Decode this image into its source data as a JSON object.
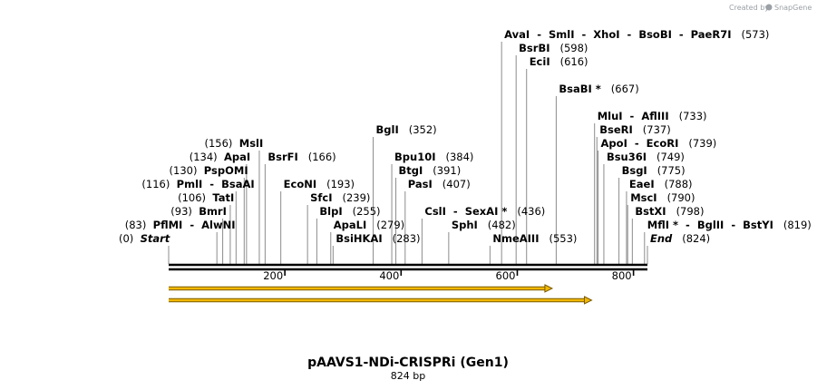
{
  "watermark": {
    "prefix": "Created by",
    "brand": "SnapGene"
  },
  "map": {
    "name": "pAAVS1-NDi-CRISPRi (Gen1)",
    "length_label": "824 bp",
    "length_bp": 824,
    "start_label": "Start",
    "end_label": "End",
    "ticks": [
      200,
      400,
      600,
      800
    ],
    "features": [
      {
        "name": "feature-arrow-1",
        "start": 1,
        "end": 660,
        "color": "#f2b800"
      },
      {
        "name": "feature-arrow-2",
        "start": 1,
        "end": 728,
        "color": "#f2b800"
      }
    ],
    "sites": [
      {
        "id": "start",
        "names": [
          "Start"
        ],
        "pos": 0,
        "pos_label": "(0)",
        "style": "start",
        "row": 0
      },
      {
        "id": "pflmi",
        "names": [
          "PflMI",
          "AlwNI"
        ],
        "pos": 83,
        "pos_label": "(83)",
        "row": 1
      },
      {
        "id": "bmri",
        "names": [
          "BmrI"
        ],
        "pos": 93,
        "pos_label": "(93)",
        "row": 2
      },
      {
        "id": "tati",
        "names": [
          "TatI"
        ],
        "pos": 106,
        "pos_label": "(106)",
        "row": 3
      },
      {
        "id": "pmli",
        "names": [
          "PmlI",
          "BsaAI"
        ],
        "pos": 116,
        "pos_label": "(116)",
        "row": 4
      },
      {
        "id": "pspomi",
        "names": [
          "PspOMI"
        ],
        "pos": 130,
        "pos_label": "(130)",
        "row": 5
      },
      {
        "id": "apai",
        "names": [
          "ApaI"
        ],
        "pos": 134,
        "pos_label": "(134)",
        "row": 6
      },
      {
        "id": "msli",
        "names": [
          "MslI"
        ],
        "pos": 156,
        "pos_label": "(156)",
        "row": 7
      },
      {
        "id": "bsrfi",
        "names": [
          "BsrFI"
        ],
        "pos": 166,
        "pos_label": "(166)",
        "row": 6
      },
      {
        "id": "econi",
        "names": [
          "EcoNI"
        ],
        "pos": 193,
        "pos_label": "(193)",
        "row": 4
      },
      {
        "id": "sfci",
        "names": [
          "SfcI"
        ],
        "pos": 239,
        "pos_label": "(239)",
        "row": 3
      },
      {
        "id": "blpi",
        "names": [
          "BlpI"
        ],
        "pos": 255,
        "pos_label": "(255)",
        "row": 2
      },
      {
        "id": "apali",
        "names": [
          "ApaLI"
        ],
        "pos": 279,
        "pos_label": "(279)",
        "row": 1
      },
      {
        "id": "bsihkai",
        "names": [
          "BsiHKAI"
        ],
        "pos": 283,
        "pos_label": "(283)",
        "row": 0
      },
      {
        "id": "bgli",
        "names": [
          "BglI"
        ],
        "pos": 352,
        "pos_label": "(352)",
        "row": 8
      },
      {
        "id": "bpu10i",
        "names": [
          "Bpu10I"
        ],
        "pos": 384,
        "pos_label": "(384)",
        "row": 6
      },
      {
        "id": "btgi",
        "names": [
          "BtgI"
        ],
        "pos": 391,
        "pos_label": "(391)",
        "row": 5
      },
      {
        "id": "pasi",
        "names": [
          "PasI"
        ],
        "pos": 407,
        "pos_label": "(407)",
        "row": 4
      },
      {
        "id": "csli",
        "names": [
          "CslI",
          "SexAI *"
        ],
        "pos": 436,
        "pos_label": "(436)",
        "row": 2
      },
      {
        "id": "sphi",
        "names": [
          "SphI"
        ],
        "pos": 482,
        "pos_label": "(482)",
        "row": 1
      },
      {
        "id": "nmeaiii",
        "names": [
          "NmeAIII"
        ],
        "pos": 553,
        "pos_label": "(553)",
        "row": 0
      },
      {
        "id": "avai",
        "names": [
          "AvaI",
          "SmlI",
          "XhoI",
          "BsoBI",
          "PaeR7I"
        ],
        "pos": 573,
        "pos_label": "(573)",
        "row": 15
      },
      {
        "id": "bsrbi",
        "names": [
          "BsrBI"
        ],
        "pos": 598,
        "pos_label": "(598)",
        "row": 14
      },
      {
        "id": "ecli",
        "names": [
          "EciI"
        ],
        "pos": 616,
        "pos_label": "(616)",
        "row": 13
      },
      {
        "id": "bsabi",
        "names": [
          "BsaBI *"
        ],
        "pos": 667,
        "pos_label": "(667)",
        "row": 11
      },
      {
        "id": "mlui",
        "names": [
          "MluI",
          "AflIII"
        ],
        "pos": 733,
        "pos_label": "(733)",
        "row": 9
      },
      {
        "id": "bseri",
        "names": [
          "BseRI"
        ],
        "pos": 737,
        "pos_label": "(737)",
        "row": 8
      },
      {
        "id": "apoi",
        "names": [
          "ApoI",
          "EcoRI"
        ],
        "pos": 739,
        "pos_label": "(739)",
        "row": 7
      },
      {
        "id": "bsu36i",
        "names": [
          "Bsu36I"
        ],
        "pos": 749,
        "pos_label": "(749)",
        "row": 6
      },
      {
        "id": "bsgi",
        "names": [
          "BsgI"
        ],
        "pos": 775,
        "pos_label": "(775)",
        "row": 5
      },
      {
        "id": "eaei",
        "names": [
          "EaeI"
        ],
        "pos": 788,
        "pos_label": "(788)",
        "row": 4
      },
      {
        "id": "msci",
        "names": [
          "MscI"
        ],
        "pos": 790,
        "pos_label": "(790)",
        "row": 3
      },
      {
        "id": "bstxi",
        "names": [
          "BstXI"
        ],
        "pos": 798,
        "pos_label": "(798)",
        "row": 2
      },
      {
        "id": "mfli",
        "names": [
          "MflI *",
          "BglII",
          "BstYI"
        ],
        "pos": 819,
        "pos_label": "(819)",
        "row": 1
      },
      {
        "id": "end",
        "names": [
          "End"
        ],
        "pos": 824,
        "pos_label": "(824)",
        "style": "end",
        "row": 0
      }
    ]
  }
}
